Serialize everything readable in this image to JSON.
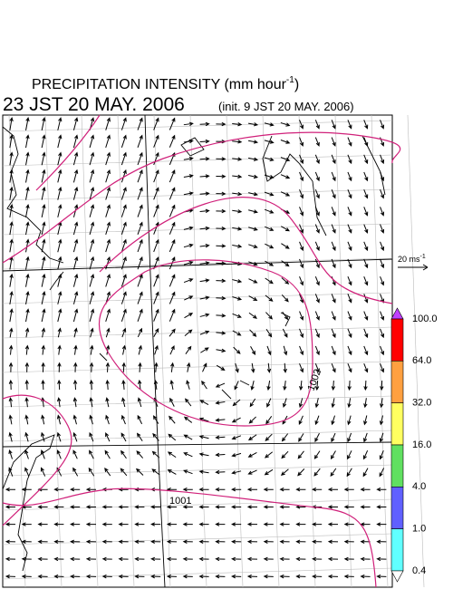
{
  "title": {
    "text": "PRECIPITATION INTENSITY (mm hour",
    "superscript": "-1",
    "closing": ")"
  },
  "valid_time": "23 JST 20 MAY. 2006",
  "init_time": "(init. 9 JST 20 MAY. 2006)",
  "vector_scale": {
    "text": "20 ms",
    "superscript": "-1"
  },
  "isobar_labels": [
    "1002",
    "1001"
  ],
  "colorbar": {
    "labels": [
      "100.0",
      "64.0",
      "32.0",
      "16.0",
      "4.0",
      "1.0",
      "0.4"
    ],
    "colors": [
      "#ff0000",
      "#ffa040",
      "#ffff60",
      "#60e060",
      "#6060ff",
      "#60ffff"
    ],
    "over_color": "#c040ff",
    "under_color": "#ffffff"
  }
}
